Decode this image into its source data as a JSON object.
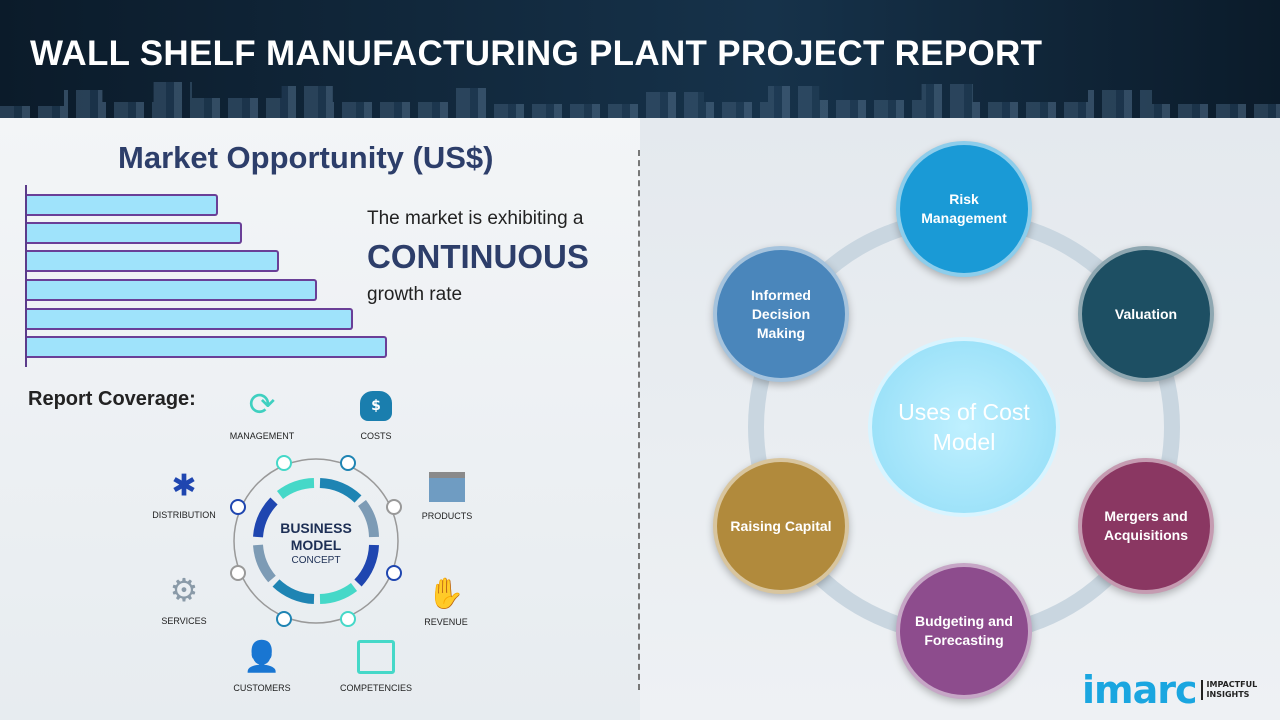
{
  "header": {
    "title": "WALL SHELF MANUFACTURING PLANT PROJECT REPORT"
  },
  "market": {
    "title": "Market Opportunity (US$)",
    "line1": "The market is exhibiting a",
    "line2": "CONTINUOUS",
    "line3": "growth rate"
  },
  "coverage": {
    "title": "Report Coverage:",
    "center_line1": "BUSINESS",
    "center_line2": "MODEL",
    "center_line3": "CONCEPT",
    "items": [
      "MANAGEMENT",
      "COSTS",
      "PRODUCTS",
      "REVENUE",
      "COMPETENCIES",
      "CUSTOMERS",
      "SERVICES",
      "DISTRIBUTION"
    ]
  },
  "uses": {
    "center": "Uses of Cost Model",
    "nodes": [
      {
        "label": "Risk Management",
        "color": "#1a9ad6"
      },
      {
        "label": "Valuation",
        "color": "#1d4f63"
      },
      {
        "label": "Mergers and Acquisitions",
        "color": "#8a3762"
      },
      {
        "label": "Budgeting and Forecasting",
        "color": "#8d4c8d"
      },
      {
        "label": "Raising Capital",
        "color": "#b18a3c"
      },
      {
        "label": "Informed Decision Making",
        "color": "#4a86bb"
      }
    ]
  },
  "logo": {
    "name": "imarc",
    "tagline1": "IMPACTFUL",
    "tagline2": "INSIGHTS"
  }
}
